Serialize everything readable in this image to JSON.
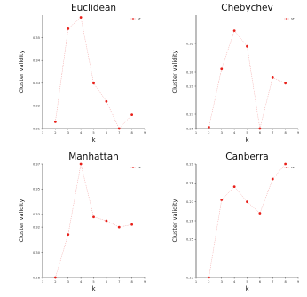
{
  "chart_data": [
    {
      "type": "line",
      "title": "Euclidean",
      "xlabel": "k",
      "ylabel": "Cluster validity",
      "xlim": [
        1,
        9
      ],
      "ylim": [
        0.31,
        0.36
      ],
      "xticks": [
        "1",
        "2",
        "3",
        "4",
        "5",
        "6",
        "7",
        "8",
        "9"
      ],
      "yticks": [
        {
          "v": 0.31,
          "t": "0.31"
        },
        {
          "v": 0.32,
          "t": "0.32"
        },
        {
          "v": 0.33,
          "t": "0.33"
        },
        {
          "v": 0.34,
          "t": "0.34"
        },
        {
          "v": 0.35,
          "t": "0.35"
        }
      ],
      "series": [
        {
          "name": "SF",
          "x": [
            2,
            3,
            4,
            5,
            6,
            7,
            8
          ],
          "y": [
            0.313,
            0.354,
            0.359,
            0.33,
            0.322,
            0.31,
            0.316
          ]
        }
      ],
      "legend": "top-right",
      "grid": false
    },
    {
      "type": "line",
      "title": "Chebychev",
      "xlabel": "k",
      "ylabel": "Cluster validity",
      "xlim": [
        1,
        9
      ],
      "ylim": [
        0.26,
        0.34
      ],
      "xticks": [
        "1",
        "2",
        "3",
        "4",
        "5",
        "6",
        "7",
        "8",
        "9"
      ],
      "yticks": [
        {
          "v": 0.26,
          "t": "0.26"
        },
        {
          "v": 0.27,
          "t": "0.27"
        },
        {
          "v": 0.29,
          "t": "0.29"
        },
        {
          "v": 0.3,
          "t": "0.30"
        },
        {
          "v": 0.32,
          "t": "0.32"
        }
      ],
      "series": [
        {
          "name": "SF",
          "x": [
            2,
            3,
            4,
            5,
            6,
            7,
            8
          ],
          "y": [
            0.261,
            0.302,
            0.329,
            0.318,
            0.26,
            0.296,
            0.292
          ]
        }
      ],
      "legend": "top-right",
      "grid": false
    },
    {
      "type": "line",
      "title": "Manhattan",
      "xlabel": "k",
      "ylabel": "Cluster validity",
      "xlim": [
        1,
        9
      ],
      "ylim": [
        0.28,
        0.37
      ],
      "xticks": [
        "1",
        "2",
        "3",
        "4",
        "5",
        "6",
        "7",
        "8",
        "9"
      ],
      "yticks": [
        {
          "v": 0.28,
          "t": "0.28"
        },
        {
          "v": 0.3,
          "t": "0.30"
        },
        {
          "v": 0.32,
          "t": "0.32"
        },
        {
          "v": 0.33,
          "t": "0.33"
        },
        {
          "v": 0.35,
          "t": "0.35"
        },
        {
          "v": 0.37,
          "t": "0.37"
        }
      ],
      "series": [
        {
          "name": "SF",
          "x": [
            2,
            3,
            4,
            5,
            6,
            7,
            8
          ],
          "y": [
            0.28,
            0.314,
            0.37,
            0.328,
            0.325,
            0.32,
            0.322
          ]
        }
      ],
      "legend": "top-right",
      "grid": false
    },
    {
      "type": "line",
      "title": "Canberra",
      "xlabel": "k",
      "ylabel": "Cluster validity",
      "xlim": [
        1,
        9
      ],
      "ylim": [
        0.23,
        0.29
      ],
      "xticks": [
        "1",
        "2",
        "3",
        "4",
        "5",
        "6",
        "7",
        "8",
        "9"
      ],
      "yticks": [
        {
          "v": 0.23,
          "t": "0.23"
        },
        {
          "v": 0.25,
          "t": "0.25"
        },
        {
          "v": 0.26,
          "t": "0.26"
        },
        {
          "v": 0.27,
          "t": "0.27"
        },
        {
          "v": 0.28,
          "t": "0.28"
        },
        {
          "v": 0.29,
          "t": "0.29"
        }
      ],
      "series": [
        {
          "name": "SF",
          "x": [
            2,
            3,
            4,
            5,
            6,
            7,
            8
          ],
          "y": [
            0.23,
            0.271,
            0.278,
            0.27,
            0.264,
            0.282,
            0.29
          ]
        }
      ],
      "legend": "top-right",
      "grid": false
    }
  ],
  "colors": {
    "marker": "#e8201a",
    "line": "#f2a0a0",
    "axis": "#222222"
  }
}
